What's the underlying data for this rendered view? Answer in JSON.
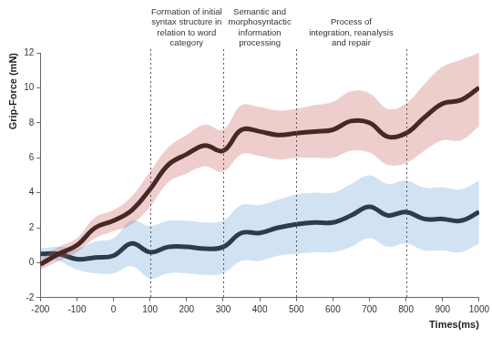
{
  "chart_data": {
    "type": "line",
    "x": [
      -200,
      -150,
      -100,
      -50,
      0,
      50,
      100,
      150,
      200,
      250,
      300,
      350,
      400,
      450,
      500,
      550,
      600,
      650,
      700,
      750,
      800,
      850,
      900,
      950,
      1000
    ],
    "series": [
      {
        "color": "#c0504d",
        "values": [
          -0.1,
          0.5,
          1.0,
          2.0,
          2.4,
          3.0,
          4.2,
          5.6,
          6.2,
          6.7,
          6.4,
          7.6,
          7.5,
          7.3,
          7.4,
          7.5,
          7.6,
          8.1,
          8.0,
          7.2,
          7.4,
          8.3,
          9.1,
          9.3,
          10.0
        ],
        "lower": [
          -0.4,
          0.1,
          0.6,
          1.4,
          1.8,
          2.2,
          3.2,
          4.6,
          5.1,
          5.5,
          5.2,
          6.2,
          6.1,
          5.9,
          6.0,
          6.0,
          6.0,
          6.4,
          6.3,
          5.6,
          5.7,
          6.4,
          7.0,
          7.0,
          7.8
        ],
        "upper": [
          0.2,
          0.9,
          1.4,
          2.6,
          3.0,
          3.8,
          5.2,
          6.6,
          7.3,
          7.9,
          7.6,
          9.0,
          8.9,
          8.7,
          8.8,
          9.0,
          9.2,
          9.8,
          9.7,
          8.8,
          9.1,
          10.2,
          11.2,
          11.6,
          12.0
        ]
      },
      {
        "color": "#5b9bd5",
        "values": [
          0.5,
          0.5,
          0.2,
          0.3,
          0.4,
          1.1,
          0.6,
          0.9,
          0.9,
          0.8,
          0.9,
          1.7,
          1.7,
          2.0,
          2.2,
          2.3,
          2.3,
          2.7,
          3.2,
          2.7,
          2.9,
          2.5,
          2.5,
          2.4,
          2.9
        ],
        "lower": [
          0.2,
          0.1,
          -0.4,
          -0.6,
          -0.6,
          -0.2,
          -0.9,
          -0.6,
          -0.6,
          -0.7,
          -0.6,
          0.1,
          0.1,
          0.4,
          0.5,
          0.6,
          0.6,
          0.9,
          1.4,
          0.9,
          1.1,
          0.7,
          0.7,
          0.6,
          1.1
        ],
        "upper": [
          0.8,
          0.9,
          0.8,
          1.2,
          1.4,
          2.4,
          2.1,
          2.4,
          2.4,
          2.3,
          2.4,
          3.3,
          3.3,
          3.6,
          3.9,
          4.0,
          4.0,
          4.5,
          5.0,
          4.5,
          4.7,
          4.3,
          4.3,
          4.2,
          4.7
        ]
      }
    ],
    "x_label": "Times(ms)",
    "y_label": "Grip-Force (mN)",
    "xlim": [
      -200,
      1000
    ],
    "xticks": [
      -200,
      -100,
      0,
      100,
      200,
      300,
      400,
      500,
      600,
      700,
      800,
      900,
      1000
    ],
    "ylim": [
      -2,
      12
    ],
    "yticks": [
      -2,
      0,
      2,
      4,
      6,
      8,
      10,
      12
    ],
    "grid": false,
    "vlines": [
      100,
      300,
      500,
      800
    ],
    "annotations": [
      {
        "text_lines": [
          "Formation of initial",
          "syntax structure in",
          "relation to word",
          "category"
        ],
        "x_range": [
          100,
          300
        ]
      },
      {
        "text_lines": [
          "Semantic and",
          "morphosyntactic",
          "information",
          "processing"
        ],
        "x_range": [
          300,
          500
        ]
      },
      {
        "text_lines": [
          "Process of",
          "integration, reanalysis",
          "and repair"
        ],
        "x_range": [
          500,
          800
        ]
      }
    ]
  }
}
